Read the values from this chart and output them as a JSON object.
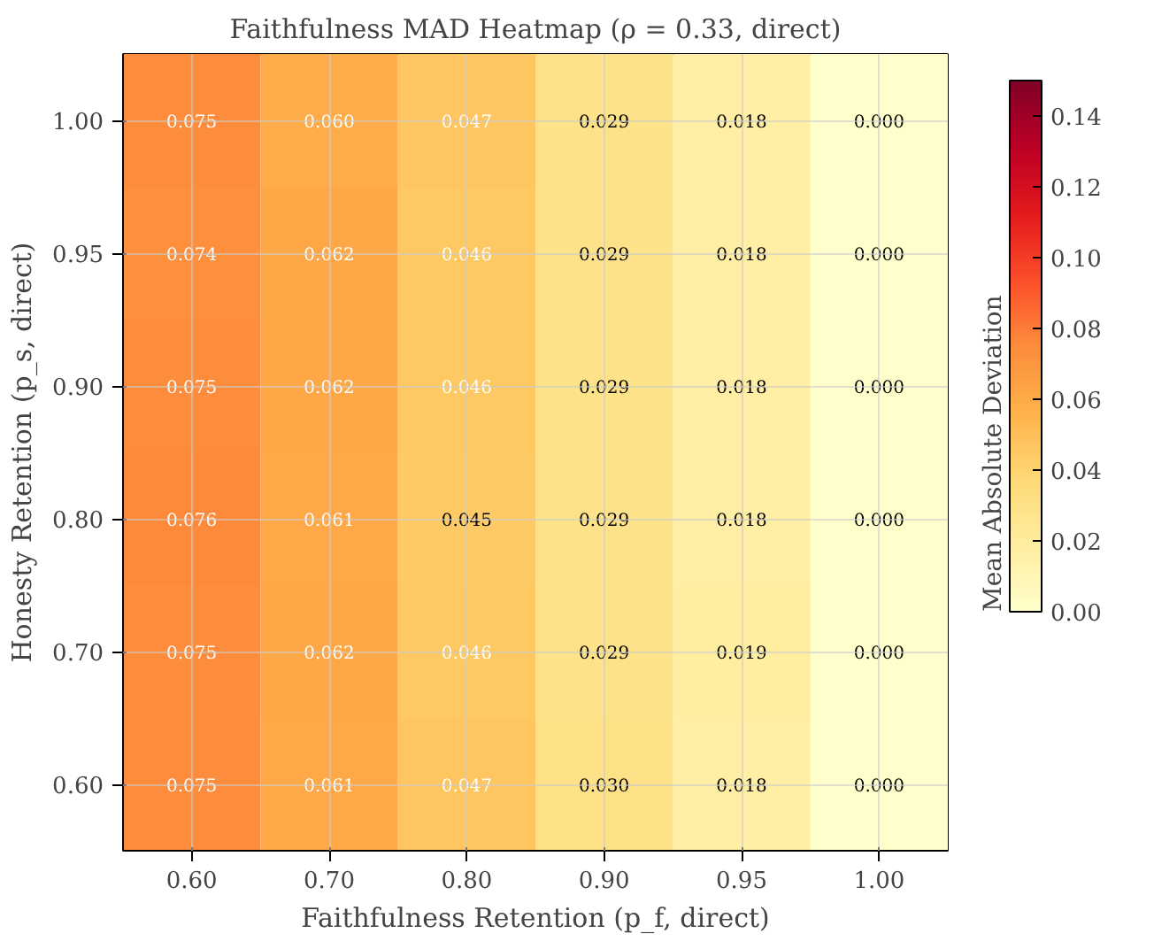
{
  "chart_data": {
    "type": "heatmap",
    "title": "Faithfulness MAD Heatmap (ρ = 0.33, direct)",
    "xlabel": "Faithfulness Retention (p_f, direct)",
    "ylabel": "Honesty Retention (p_s, direct)",
    "clabel": "Mean Absolute Deviation",
    "categories": [
      "0.60",
      "0.70",
      "0.80",
      "0.90",
      "0.95",
      "1.00"
    ],
    "y_categories": [
      "1.00",
      "0.95",
      "0.90",
      "0.80",
      "0.70",
      "0.60"
    ],
    "cells": [
      [
        0.075,
        0.06,
        0.047,
        0.029,
        0.018,
        0.0
      ],
      [
        0.074,
        0.062,
        0.046,
        0.029,
        0.018,
        0.0
      ],
      [
        0.075,
        0.062,
        0.046,
        0.029,
        0.018,
        0.0
      ],
      [
        0.076,
        0.061,
        0.045,
        0.029,
        0.018,
        0.0
      ],
      [
        0.075,
        0.062,
        0.046,
        0.029,
        0.019,
        0.0
      ],
      [
        0.075,
        0.061,
        0.047,
        0.03,
        0.018,
        0.0
      ]
    ],
    "cell_labels": [
      [
        "0.075",
        "0.060",
        "0.047",
        "0.029",
        "0.018",
        "0.000"
      ],
      [
        "0.074",
        "0.062",
        "0.046",
        "0.029",
        "0.018",
        "0.000"
      ],
      [
        "0.075",
        "0.062",
        "0.046",
        "0.029",
        "0.018",
        "0.000"
      ],
      [
        "0.076",
        "0.061",
        "0.045",
        "0.029",
        "0.018",
        "0.000"
      ],
      [
        "0.075",
        "0.062",
        "0.046",
        "0.029",
        "0.019",
        "0.000"
      ],
      [
        "0.075",
        "0.061",
        "0.047",
        "0.030",
        "0.018",
        "0.000"
      ]
    ],
    "clim": [
      0,
      0.15
    ],
    "cticks": [
      {
        "value": 0,
        "label": "0.00"
      },
      {
        "value": 0.02,
        "label": "0.02"
      },
      {
        "value": 0.04,
        "label": "0.04"
      },
      {
        "value": 0.06,
        "label": "0.06"
      },
      {
        "value": 0.08,
        "label": "0.08"
      },
      {
        "value": 0.1,
        "label": "0.10"
      },
      {
        "value": 0.12,
        "label": "0.12"
      },
      {
        "value": 0.14,
        "label": "0.14"
      }
    ],
    "grid": true
  }
}
